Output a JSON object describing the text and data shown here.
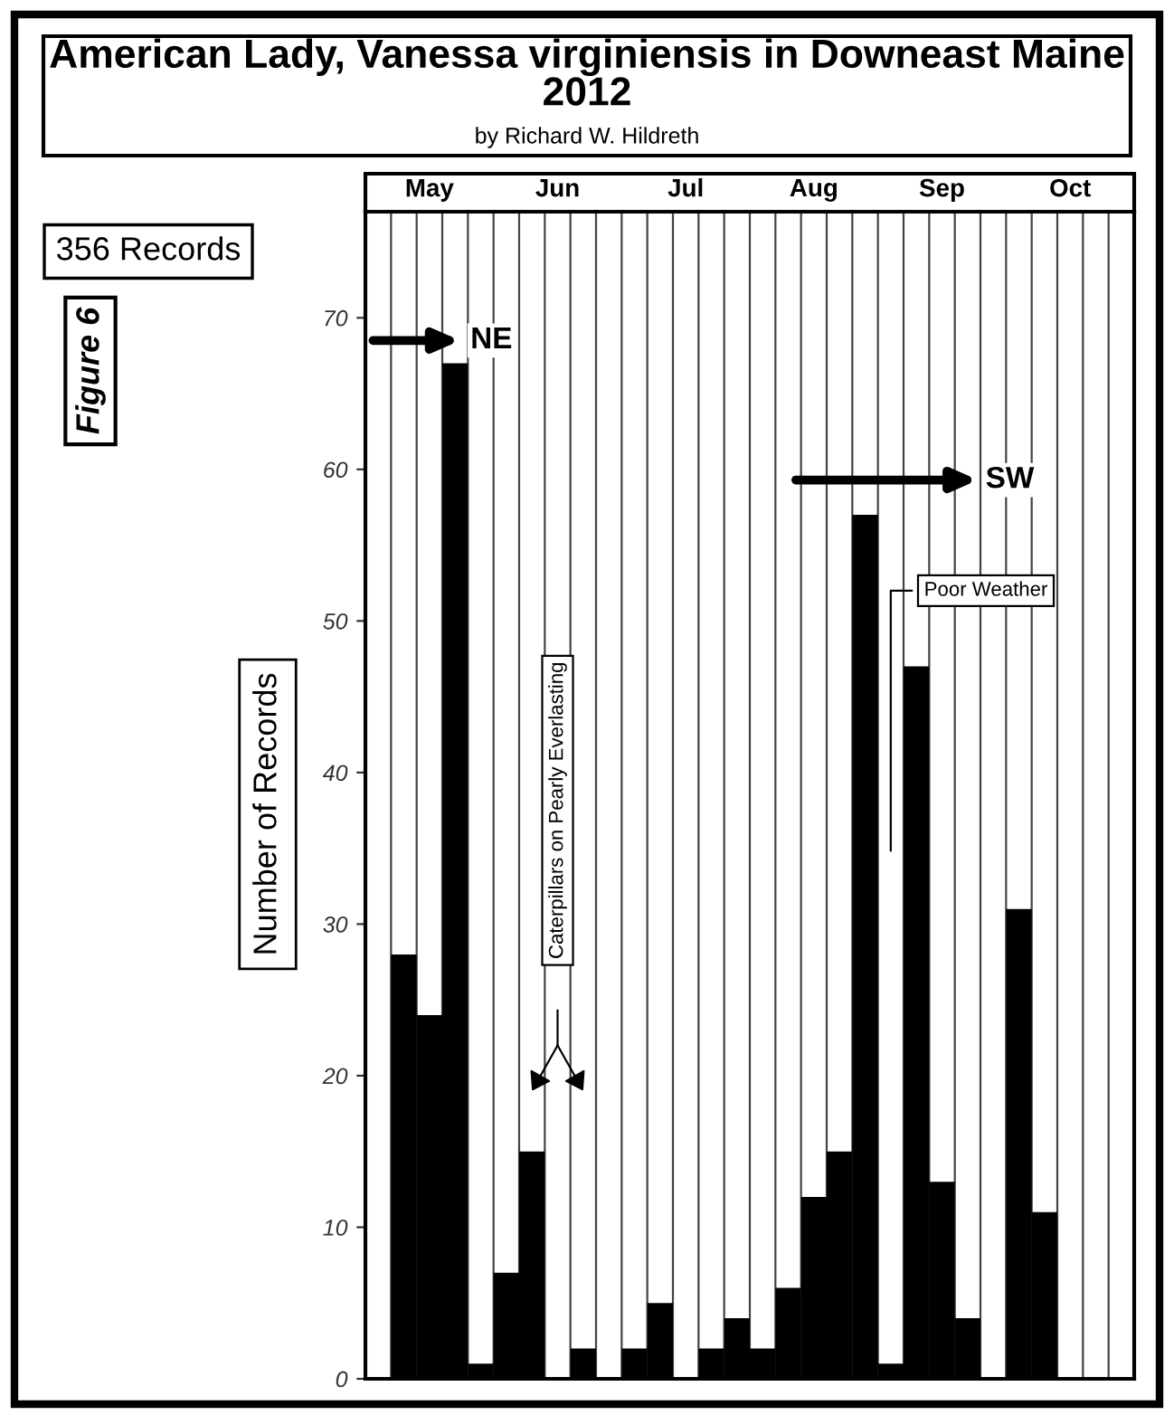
{
  "chart_data": {
    "type": "bar",
    "title": "American Lady, Vanessa virginiensis in Downeast Maine 2012",
    "subtitle": "by Richard W. Hildreth",
    "ylabel": "Number of Records",
    "categories": [
      null,
      null,
      "May",
      null,
      null,
      null,
      null,
      "Jun",
      null,
      null,
      null,
      null,
      "Jul",
      null,
      null,
      null,
      null,
      "Aug",
      null,
      null,
      null,
      null,
      "Sep",
      null,
      null,
      null,
      null,
      "Oct",
      null,
      null
    ],
    "values": [
      0,
      28,
      24,
      67,
      1,
      7,
      15,
      0,
      2,
      0,
      2,
      5,
      0,
      2,
      4,
      2,
      6,
      12,
      15,
      57,
      1,
      47,
      13,
      4,
      0,
      31,
      11,
      0,
      0,
      0
    ],
    "color": "#000000",
    "ylim": [
      0,
      77
    ],
    "yticks": [
      0,
      10,
      20,
      30,
      40,
      50,
      60,
      70
    ],
    "grid": "x",
    "annotations": [
      "356 Records",
      "Figure 6",
      "NE",
      "SW",
      "Poor Weather",
      "Caterpillars on Pearly Everlasting"
    ]
  }
}
